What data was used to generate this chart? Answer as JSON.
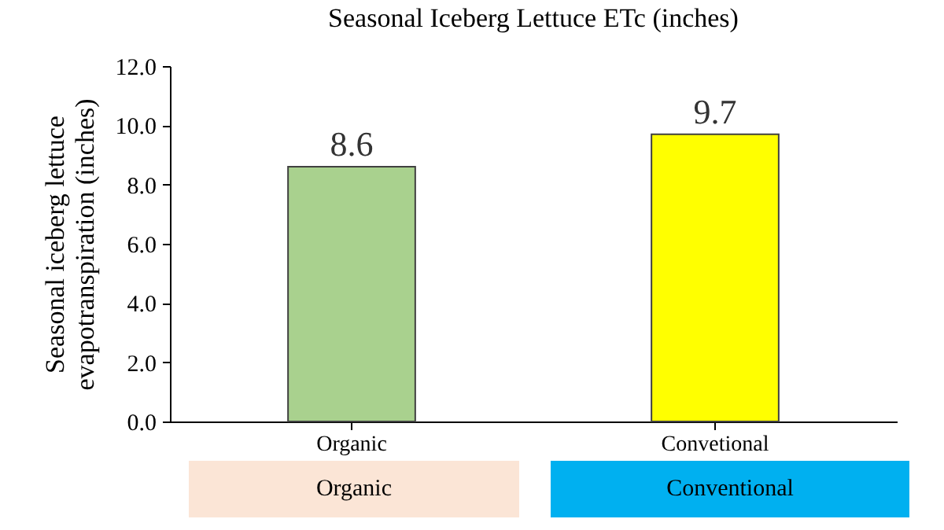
{
  "chart_data": {
    "type": "bar",
    "title": "Seasonal Iceberg Lettuce ETc (inches)",
    "ylabel": "Seasonal iceberg lettuce\nevapotranspiration  (inches)",
    "categories": [
      "Organic",
      "Convetional"
    ],
    "values": [
      8.6,
      9.7
    ],
    "colors": [
      "#a9d18e",
      "#ffff00"
    ],
    "ylim": [
      0,
      12
    ],
    "yticks": [
      {
        "value": 0,
        "label": "0.0"
      },
      {
        "value": 2,
        "label": "2.0"
      },
      {
        "value": 4,
        "label": "4.0"
      },
      {
        "value": 6,
        "label": "6.0"
      },
      {
        "value": 8,
        "label": "8.0"
      },
      {
        "value": 10,
        "label": "10.0"
      },
      {
        "value": 12,
        "label": "12.0"
      }
    ],
    "data_labels": true,
    "annotations": [
      "Organic",
      "Conventional"
    ]
  }
}
